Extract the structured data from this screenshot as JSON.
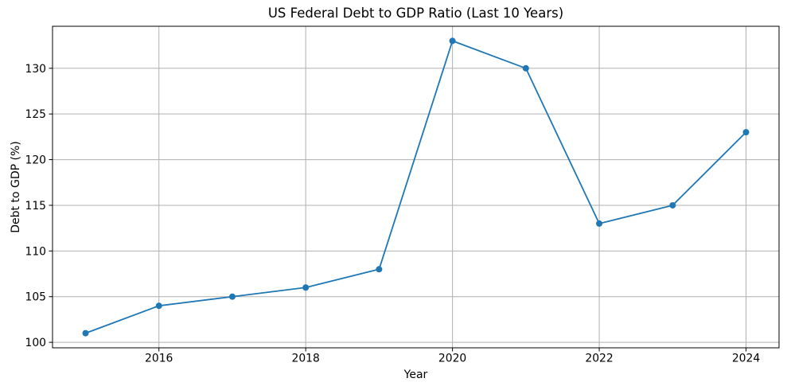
{
  "chart_data": {
    "type": "line",
    "title": "US Federal Debt to GDP Ratio (Last 10 Years)",
    "xlabel": "Year",
    "ylabel": "Debt to GDP (%)",
    "x": [
      2015,
      2016,
      2017,
      2018,
      2019,
      2020,
      2021,
      2022,
      2023,
      2024
    ],
    "series": [
      {
        "name": "Debt to GDP (%)",
        "values": [
          101,
          104,
          105,
          106,
          108,
          133,
          130,
          113,
          115,
          123
        ]
      }
    ],
    "xticks": [
      2016,
      2018,
      2020,
      2022,
      2024
    ],
    "yticks": [
      100,
      105,
      110,
      115,
      120,
      125,
      130
    ],
    "xlim": [
      2014.55,
      2024.45
    ],
    "ylim": [
      99.4,
      134.6
    ],
    "grid": true,
    "legend_position": "none",
    "colors": {
      "line": "#1f77b4",
      "marker": "#1f77b4",
      "grid": "#b0b0b0",
      "spine": "#000000",
      "text": "#000000",
      "background": "#ffffff"
    }
  }
}
